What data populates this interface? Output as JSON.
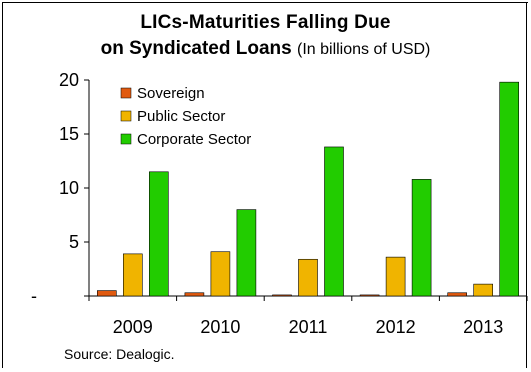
{
  "chart_data": {
    "type": "bar",
    "title_line1": "LICs-Maturities Falling Due",
    "title_line2_bold": "on Syndicated Loans",
    "title_line2_normal": "(In billions of USD)",
    "categories": [
      "2009",
      "2010",
      "2011",
      "2012",
      "2013"
    ],
    "series": [
      {
        "name": "Sovereign",
        "values": [
          0.5,
          0.3,
          0.1,
          0.1,
          0.3
        ],
        "color": "#e05a10"
      },
      {
        "name": "Public Sector",
        "values": [
          3.9,
          4.1,
          3.4,
          3.6,
          1.1
        ],
        "color": "#f0b400"
      },
      {
        "name": "Corporate Sector",
        "values": [
          11.5,
          8.0,
          13.8,
          10.8,
          19.8
        ],
        "color": "#22cc00"
      }
    ],
    "ylim": [
      0,
      20
    ],
    "yticks": [
      {
        "value": 0,
        "label": "-"
      },
      {
        "value": 5,
        "label": "5"
      },
      {
        "value": 10,
        "label": "10"
      },
      {
        "value": 15,
        "label": "15"
      },
      {
        "value": 20,
        "label": "20"
      }
    ],
    "legend_position": "top-left",
    "grid": false,
    "source": "Source: Dealogic."
  }
}
